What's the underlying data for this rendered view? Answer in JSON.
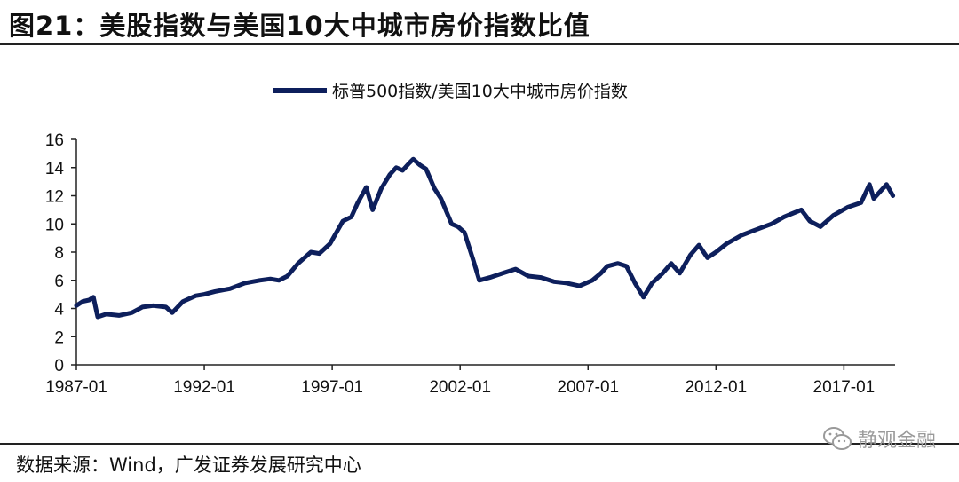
{
  "figure": {
    "title": "图21：美股指数与美国10大中城市房价指数比值",
    "source": "数据来源：Wind，广发证券发展研究中心",
    "watermark": "静观金融",
    "watermark_icon": "wechat-icon"
  },
  "chart_data": {
    "type": "line",
    "title": "",
    "xlabel": "",
    "ylabel": "",
    "ylim": [
      0,
      16
    ],
    "yticks": [
      0,
      2,
      4,
      6,
      8,
      10,
      12,
      14,
      16
    ],
    "xlim": [
      "1987-01",
      "2019-01"
    ],
    "xticks": [
      "1987-01",
      "1992-01",
      "1997-01",
      "2002-01",
      "2007-01",
      "2012-01",
      "2017-01"
    ],
    "grid": false,
    "legend_position": "top-center",
    "series": [
      {
        "name": "标普500指数/美国10大中城市房价指数",
        "color": "#0d1f5c",
        "points": [
          [
            "1987-01",
            4.2
          ],
          [
            "1987-04",
            4.5
          ],
          [
            "1987-07",
            4.6
          ],
          [
            "1987-09",
            4.8
          ],
          [
            "1987-11",
            3.4
          ],
          [
            "1988-03",
            3.6
          ],
          [
            "1988-09",
            3.5
          ],
          [
            "1989-03",
            3.7
          ],
          [
            "1989-08",
            4.1
          ],
          [
            "1990-01",
            4.2
          ],
          [
            "1990-07",
            4.1
          ],
          [
            "1990-10",
            3.7
          ],
          [
            "1991-03",
            4.5
          ],
          [
            "1991-09",
            4.9
          ],
          [
            "1992-01",
            5.0
          ],
          [
            "1992-06",
            5.2
          ],
          [
            "1993-01",
            5.4
          ],
          [
            "1993-08",
            5.8
          ],
          [
            "1994-03",
            6.0
          ],
          [
            "1994-08",
            6.1
          ],
          [
            "1994-12",
            6.0
          ],
          [
            "1995-04",
            6.3
          ],
          [
            "1995-09",
            7.2
          ],
          [
            "1996-03",
            8.0
          ],
          [
            "1996-07",
            7.9
          ],
          [
            "1996-12",
            8.6
          ],
          [
            "1997-06",
            10.2
          ],
          [
            "1997-10",
            10.5
          ],
          [
            "1998-01",
            11.5
          ],
          [
            "1998-05",
            12.6
          ],
          [
            "1998-08",
            11.0
          ],
          [
            "1998-12",
            12.5
          ],
          [
            "1999-04",
            13.5
          ],
          [
            "1999-07",
            14.0
          ],
          [
            "1999-10",
            13.8
          ],
          [
            "2000-01",
            14.3
          ],
          [
            "2000-03",
            14.6
          ],
          [
            "2000-06",
            14.2
          ],
          [
            "2000-09",
            13.9
          ],
          [
            "2001-01",
            12.5
          ],
          [
            "2001-04",
            11.8
          ],
          [
            "2001-09",
            10.0
          ],
          [
            "2001-12",
            9.8
          ],
          [
            "2002-03",
            9.4
          ],
          [
            "2002-07",
            7.5
          ],
          [
            "2002-10",
            6.0
          ],
          [
            "2003-03",
            6.2
          ],
          [
            "2003-09",
            6.5
          ],
          [
            "2004-03",
            6.8
          ],
          [
            "2004-09",
            6.3
          ],
          [
            "2005-03",
            6.2
          ],
          [
            "2005-09",
            5.9
          ],
          [
            "2006-03",
            5.8
          ],
          [
            "2006-09",
            5.6
          ],
          [
            "2007-03",
            6.0
          ],
          [
            "2007-07",
            6.5
          ],
          [
            "2007-10",
            7.0
          ],
          [
            "2008-03",
            7.2
          ],
          [
            "2008-07",
            7.0
          ],
          [
            "2008-11",
            5.8
          ],
          [
            "2009-03",
            4.8
          ],
          [
            "2009-07",
            5.8
          ],
          [
            "2009-12",
            6.5
          ],
          [
            "2010-04",
            7.2
          ],
          [
            "2010-08",
            6.5
          ],
          [
            "2011-01",
            7.8
          ],
          [
            "2011-05",
            8.5
          ],
          [
            "2011-09",
            7.6
          ],
          [
            "2012-01",
            8.0
          ],
          [
            "2012-06",
            8.6
          ],
          [
            "2013-01",
            9.2
          ],
          [
            "2013-08",
            9.6
          ],
          [
            "2014-03",
            10.0
          ],
          [
            "2014-09",
            10.5
          ],
          [
            "2015-05",
            11.0
          ],
          [
            "2015-09",
            10.2
          ],
          [
            "2016-02",
            9.8
          ],
          [
            "2016-08",
            10.6
          ],
          [
            "2017-03",
            11.2
          ],
          [
            "2017-09",
            11.5
          ],
          [
            "2018-01",
            12.8
          ],
          [
            "2018-03",
            11.8
          ],
          [
            "2018-09",
            12.8
          ],
          [
            "2018-12",
            12.0
          ]
        ]
      }
    ]
  }
}
